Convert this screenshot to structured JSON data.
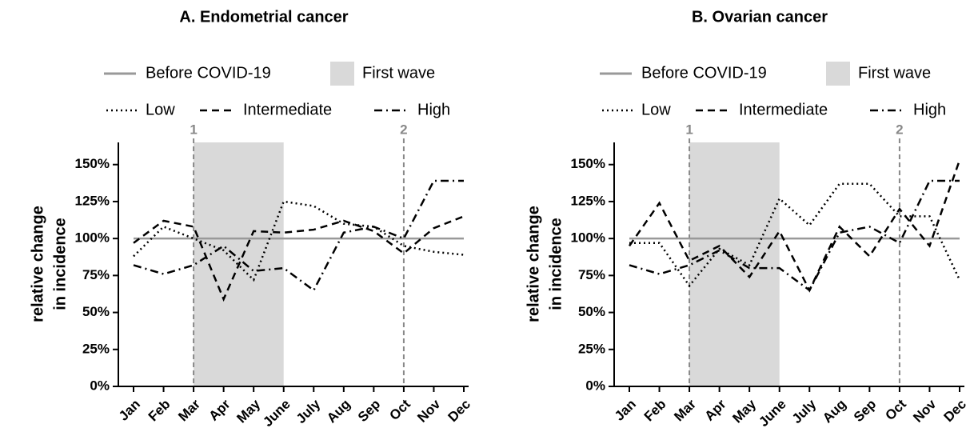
{
  "chart_data": [
    {
      "type": "line",
      "title": "A. Endometrial cancer",
      "y_label": [
        "relative change",
        "in incidence"
      ],
      "categories": [
        "Jan",
        "Feb",
        "Mar",
        "Apr",
        "May",
        "June",
        "July",
        "Aug",
        "Sep",
        "Oct",
        "Nov",
        "Dec"
      ],
      "baseline": {
        "name": "Before COVID-19",
        "value": 100,
        "color": "#999999"
      },
      "shade": {
        "name": "First wave",
        "from": "Mar",
        "to": "June",
        "color": "#d9d9d9"
      },
      "markers": [
        {
          "label": "1",
          "category": "Mar"
        },
        {
          "label": "2",
          "category": "Oct"
        }
      ],
      "series": [
        {
          "name": "Low",
          "color": "#000000",
          "dash": "dotted",
          "values": [
            88,
            108,
            100,
            92,
            72,
            125,
            122,
            110,
            108,
            95,
            91,
            89
          ]
        },
        {
          "name": "Intermediate",
          "color": "#000000",
          "dash": "dashed",
          "values": [
            97,
            112,
            108,
            59,
            105,
            104,
            106,
            112,
            105,
            90,
            107,
            115
          ]
        },
        {
          "name": "High",
          "color": "#000000",
          "dash": "dashdot",
          "values": [
            82,
            76,
            82,
            95,
            78,
            80,
            65,
            104,
            108,
            100,
            139,
            139
          ]
        }
      ],
      "ylim": [
        0,
        165
      ],
      "yticks": [
        {
          "value": 0,
          "label": "0%"
        },
        {
          "value": 25,
          "label": "25%"
        },
        {
          "value": 50,
          "label": "50%"
        },
        {
          "value": 75,
          "label": "75%"
        },
        {
          "value": 100,
          "label": "100%"
        },
        {
          "value": 125,
          "label": "125%"
        },
        {
          "value": 150,
          "label": "150%"
        }
      ]
    },
    {
      "type": "line",
      "title": "B. Ovarian cancer",
      "y_label": [
        "relative change",
        "in incidence"
      ],
      "categories": [
        "Jan",
        "Feb",
        "Mar",
        "Apr",
        "May",
        "June",
        "July",
        "Aug",
        "Sep",
        "Oct",
        "Nov",
        "Dec"
      ],
      "baseline": {
        "name": "Before COVID-19",
        "value": 100,
        "color": "#999999"
      },
      "shade": {
        "name": "First wave",
        "from": "Mar",
        "to": "June",
        "color": "#d9d9d9"
      },
      "markers": [
        {
          "label": "1",
          "category": "Mar"
        },
        {
          "label": "2",
          "category": "Oct"
        }
      ],
      "series": [
        {
          "name": "Low",
          "color": "#000000",
          "dash": "dotted",
          "values": [
            97,
            97,
            68,
            93,
            82,
            127,
            109,
            137,
            137,
            115,
            115,
            72
          ]
        },
        {
          "name": "Intermediate",
          "color": "#000000",
          "dash": "dashed",
          "values": [
            95,
            124,
            85,
            95,
            74,
            105,
            65,
            108,
            88,
            120,
            95,
            153
          ]
        },
        {
          "name": "High",
          "color": "#000000",
          "dash": "dashdot",
          "values": [
            82,
            76,
            82,
            92,
            80,
            80,
            65,
            104,
            108,
            97,
            139,
            139
          ]
        }
      ],
      "ylim": [
        0,
        165
      ],
      "yticks": [
        {
          "value": 0,
          "label": "0%"
        },
        {
          "value": 25,
          "label": "25%"
        },
        {
          "value": 50,
          "label": "50%"
        },
        {
          "value": 75,
          "label": "75%"
        },
        {
          "value": 100,
          "label": "100%"
        },
        {
          "value": 125,
          "label": "125%"
        },
        {
          "value": 150,
          "label": "150%"
        }
      ]
    }
  ]
}
